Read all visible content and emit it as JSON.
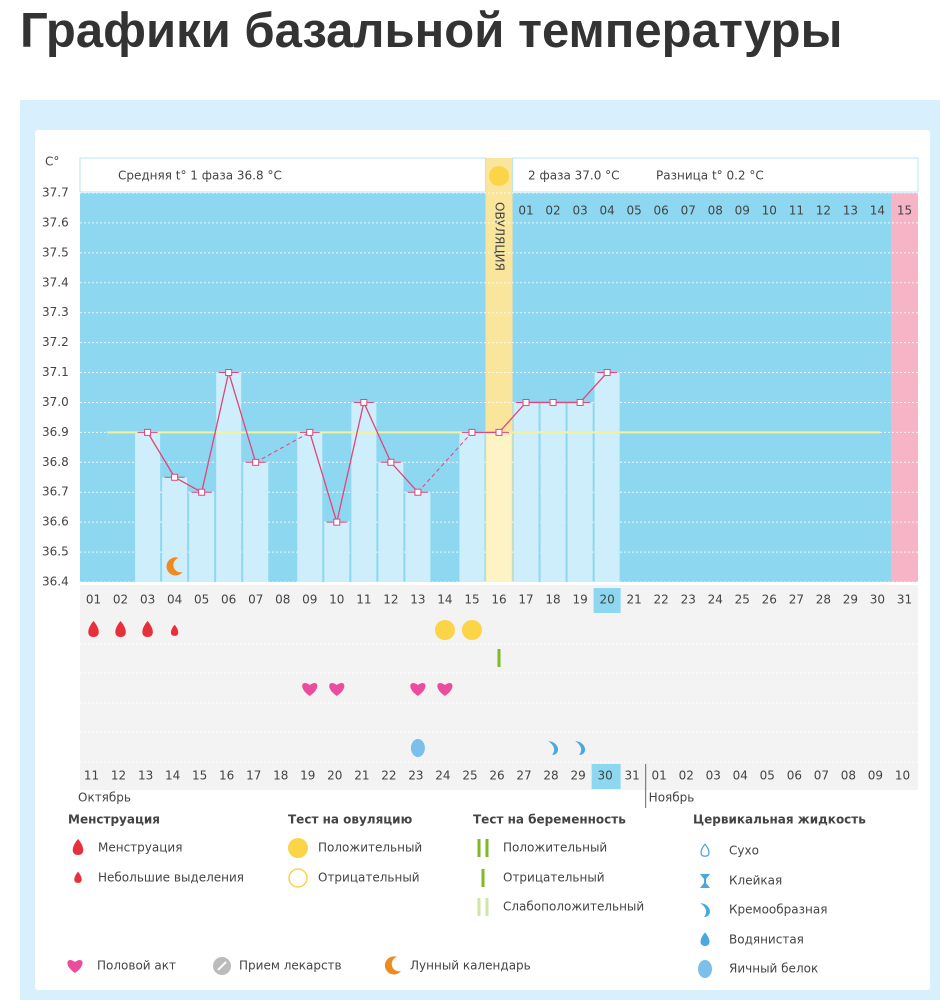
{
  "chart_data": {
    "type": "line",
    "title": "Графики базальной температуры",
    "y_label": "C°",
    "phase1_label": "Средняя t° 1 фаза 36.8 °C",
    "phase2_label": "2 фаза 37.0 °C",
    "difference_label": "Разница t° 0.2 °C",
    "ovulation_label": "ОВУЛЯЦИЯ",
    "ovulation_day": "16",
    "period_day": "31",
    "highlight_category": "20",
    "categories": [
      "01",
      "02",
      "03",
      "04",
      "05",
      "06",
      "07",
      "08",
      "09",
      "10",
      "11",
      "12",
      "13",
      "14",
      "15",
      "16",
      "17",
      "18",
      "19",
      "20",
      "21",
      "22",
      "23",
      "24",
      "25",
      "26",
      "27",
      "28",
      "29",
      "30",
      "31"
    ],
    "values": [
      null,
      null,
      36.9,
      36.75,
      36.7,
      37.1,
      36.8,
      null,
      36.9,
      36.6,
      37.0,
      36.8,
      36.7,
      null,
      36.9,
      36.9,
      37.0,
      37.0,
      37.0,
      37.1,
      null,
      null,
      null,
      null,
      null,
      null,
      null,
      null,
      null,
      null,
      null
    ],
    "color": "#e0457b",
    "coverline": 36.9,
    "ylim": [
      36.4,
      37.7
    ],
    "yticks": [
      36.4,
      36.5,
      36.6,
      36.7,
      36.8,
      36.9,
      {
        "value": 37,
        "label": "37.0"
      },
      37.1,
      37.2,
      37.3,
      37.4,
      37.5,
      37.6,
      37.7
    ],
    "grid": true,
    "phase2_days": [
      "01",
      "02",
      "03",
      "04",
      "05",
      "06",
      "07",
      "08",
      "09",
      "10",
      "11",
      "12",
      "13",
      "14",
      "15"
    ],
    "menstruation_days": [
      "01",
      "02",
      "03"
    ],
    "spotting_days": [
      "04"
    ],
    "ovulation_positive_days": [
      "14",
      "15"
    ],
    "pregnancy_negative_days": [
      "16"
    ],
    "intercourse_days": [
      "09",
      "10",
      "13",
      "14"
    ],
    "cervical_egg_white_days": [
      "13"
    ],
    "cervical_creamy_days": [
      "18",
      "19"
    ],
    "lunar_days": [
      "04"
    ],
    "dates": [
      "11",
      "12",
      "13",
      "14",
      "15",
      "16",
      "17",
      "18",
      "19",
      "20",
      "21",
      "22",
      "23",
      "24",
      "25",
      "26",
      "27",
      "28",
      "29",
      "30",
      "31",
      "01",
      "02",
      "03",
      "04",
      "05",
      "06",
      "07",
      "08",
      "09",
      "10"
    ],
    "weekend_dates": [
      "16",
      "17",
      "23",
      "24",
      "31",
      "06",
      "07"
    ],
    "highlight_date": "30",
    "months": [
      {
        "label": "Октябрь",
        "start": "11"
      },
      {
        "label": "Ноябрь",
        "start": "01"
      }
    ],
    "legend_groups": [
      {
        "title": "Менструация",
        "items": [
          "Менструация",
          "Небольшие выделения"
        ]
      },
      {
        "title": "Тест на овуляцию",
        "items": [
          "Положительный",
          "Отрицательный"
        ]
      },
      {
        "title": "Тест на беременность",
        "items": [
          "Положительный",
          "Отрицательный",
          "Слабоположительный"
        ]
      },
      {
        "title": "Цервикальная жидкость",
        "items": [
          "Сухо",
          "Клейкая",
          "Кремообразная",
          "Водянистая",
          "Яичный белок"
        ]
      }
    ],
    "legend_extra": [
      "Половой акт",
      "Прием лекарств",
      "Лунный календарь"
    ]
  }
}
